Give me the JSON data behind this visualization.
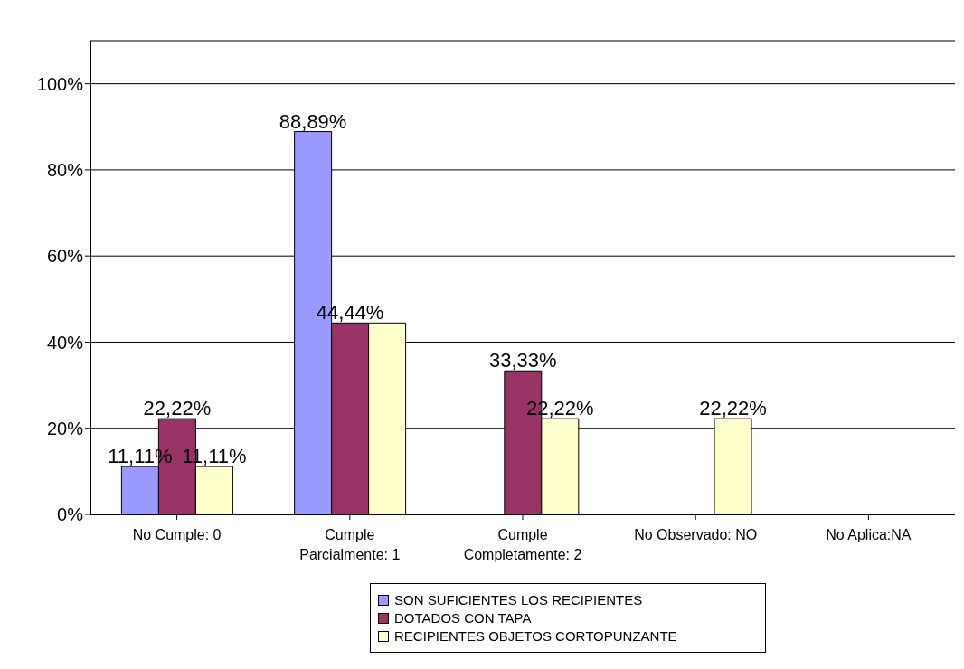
{
  "chart_data": {
    "type": "bar",
    "categories": [
      "No Cumple: 0",
      "Cumple Parcialmente: 1",
      "Cumple Completamente: 2",
      "No Observado: NO",
      "No Aplica:NA"
    ],
    "series": [
      {
        "name": "SON SUFICIENTES LOS RECIPIENTES",
        "color": "#9999ff",
        "values": [
          11.11,
          88.89,
          0,
          0,
          0
        ],
        "value_labels": [
          "11,11%",
          "88,89%",
          null,
          null,
          null
        ]
      },
      {
        "name": "DOTADOS CON TAPA",
        "color": "#993366",
        "values": [
          22.22,
          44.44,
          33.33,
          0,
          0
        ],
        "value_labels": [
          "22,22%",
          "44,44%",
          "33,33%",
          null,
          null
        ]
      },
      {
        "name": "RECIPIENTES OBJETOS CORTOPUNZANTE",
        "color": "#ffffcc",
        "values": [
          11.11,
          44.44,
          22.22,
          22.22,
          0
        ],
        "value_labels": [
          "11,11%",
          null,
          "22,22%",
          "22,22%",
          null
        ]
      }
    ],
    "ylim": [
      0,
      110
    ],
    "yticks": [
      {
        "value": 0,
        "label": "0%"
      },
      {
        "value": 20,
        "label": "20%"
      },
      {
        "value": 40,
        "label": "40%"
      },
      {
        "value": 60,
        "label": "60%"
      },
      {
        "value": 80,
        "label": "80%"
      },
      {
        "value": 100,
        "label": "100%"
      }
    ],
    "grid": "y",
    "legend": "bottom"
  }
}
